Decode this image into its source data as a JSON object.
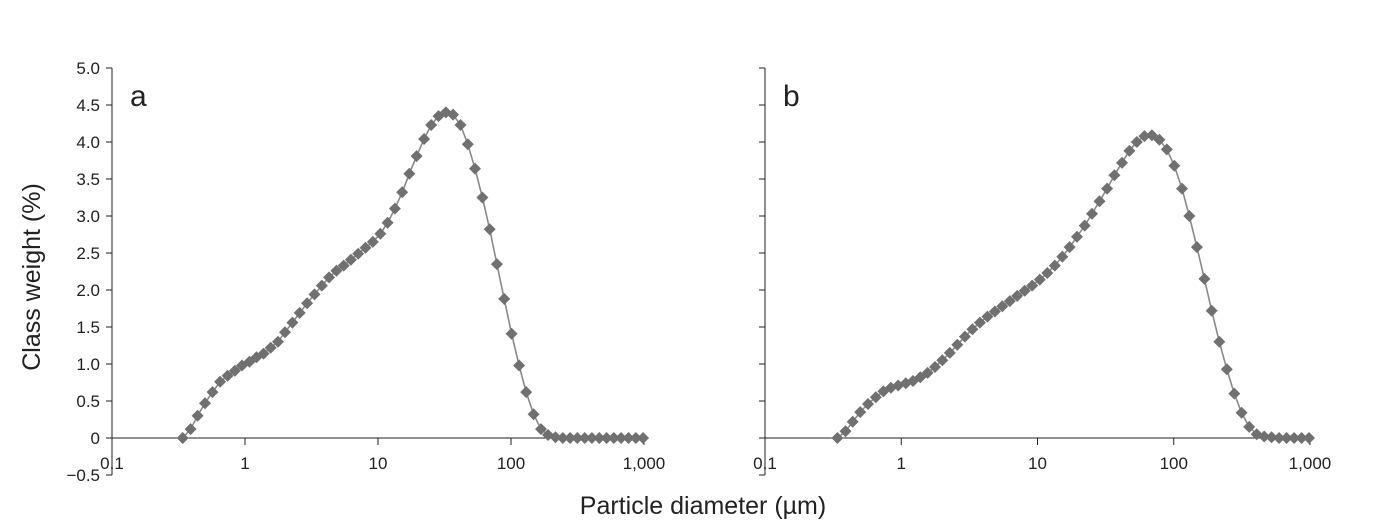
{
  "colors": {
    "marker": "#707070",
    "line": "#8a8a8a",
    "axis": "#222222",
    "background": "#ffffff"
  },
  "axes": {
    "ylabel": "Class weight (%)",
    "xlabel": "Particle diameter (µm)"
  },
  "chart_data": [
    {
      "type": "scatter",
      "panel_label": "a",
      "xlabel": "Particle diameter (µm)",
      "ylabel": "Class weight (%)",
      "x_scale": "log",
      "xlim": [
        0.1,
        1000
      ],
      "ylim": [
        -0.5,
        5.0
      ],
      "x_ticks": [
        0.1,
        1,
        10,
        100,
        1000
      ],
      "x_tick_labels": [
        "0.1",
        "1",
        "10",
        "100",
        "1,000"
      ],
      "y_ticks": [
        -0.5,
        0,
        0.5,
        1.0,
        1.5,
        2.0,
        2.5,
        3.0,
        3.5,
        4.0,
        4.5,
        5.0
      ],
      "y_tick_labels": [
        "−0.5",
        "0",
        "0.5",
        "1.0",
        "1.5",
        "2.0",
        "2.5",
        "3.0",
        "3.5",
        "4.0",
        "4.5",
        "5.0"
      ],
      "grid": false,
      "marker": "diamond",
      "connected": true,
      "series": [
        {
          "points": [
            [
              0.34,
              0.0
            ],
            [
              0.39,
              0.12
            ],
            [
              0.44,
              0.3
            ],
            [
              0.5,
              0.47
            ],
            [
              0.57,
              0.62
            ],
            [
              0.65,
              0.76
            ],
            [
              0.74,
              0.84
            ],
            [
              0.84,
              0.91
            ],
            [
              0.95,
              0.98
            ],
            [
              1.08,
              1.03
            ],
            [
              1.22,
              1.09
            ],
            [
              1.38,
              1.14
            ],
            [
              1.56,
              1.22
            ],
            [
              1.77,
              1.3
            ],
            [
              2.0,
              1.43
            ],
            [
              2.27,
              1.56
            ],
            [
              2.58,
              1.69
            ],
            [
              2.93,
              1.82
            ],
            [
              3.33,
              1.94
            ],
            [
              3.78,
              2.06
            ],
            [
              4.29,
              2.17
            ],
            [
              4.87,
              2.26
            ],
            [
              5.52,
              2.33
            ],
            [
              6.26,
              2.41
            ],
            [
              7.1,
              2.49
            ],
            [
              8.06,
              2.57
            ],
            [
              9.14,
              2.65
            ],
            [
              10.4,
              2.76
            ],
            [
              11.8,
              2.91
            ],
            [
              13.4,
              3.1
            ],
            [
              15.2,
              3.32
            ],
            [
              17.2,
              3.57
            ],
            [
              19.5,
              3.81
            ],
            [
              22.2,
              4.04
            ],
            [
              25.1,
              4.23
            ],
            [
              28.5,
              4.35
            ],
            [
              32.4,
              4.4
            ],
            [
              36.7,
              4.37
            ],
            [
              41.7,
              4.23
            ],
            [
              47.3,
              3.97
            ],
            [
              53.6,
              3.64
            ],
            [
              60.9,
              3.25
            ],
            [
              69.1,
              2.82
            ],
            [
              78.4,
              2.35
            ],
            [
              88.9,
              1.88
            ],
            [
              101,
              1.41
            ],
            [
              115,
              0.98
            ],
            [
              130,
              0.62
            ],
            [
              148,
              0.32
            ],
            [
              168,
              0.12
            ],
            [
              190,
              0.04
            ],
            [
              216,
              0.01
            ],
            [
              245,
              0.0
            ],
            [
              278,
              0.0
            ],
            [
              315,
              0.0
            ],
            [
              358,
              0.0
            ],
            [
              406,
              0.0
            ],
            [
              461,
              0.0
            ],
            [
              523,
              0.0
            ],
            [
              593,
              0.0
            ],
            [
              673,
              0.0
            ],
            [
              764,
              0.0
            ],
            [
              867,
              0.0
            ],
            [
              984,
              0.0
            ]
          ]
        }
      ]
    },
    {
      "type": "scatter",
      "panel_label": "b",
      "xlabel": "Particle diameter (µm)",
      "ylabel": "Class weight (%)",
      "x_scale": "log",
      "xlim": [
        0.1,
        1000
      ],
      "ylim": [
        -0.5,
        5.0
      ],
      "x_ticks": [
        0.1,
        1,
        10,
        100,
        1000
      ],
      "x_tick_labels": [
        "0.1",
        "1",
        "10",
        "100",
        "1,000"
      ],
      "y_ticks": [
        -0.5,
        0,
        0.5,
        1.0,
        1.5,
        2.0,
        2.5,
        3.0,
        3.5,
        4.0,
        4.5,
        5.0
      ],
      "y_tick_labels": [],
      "grid": false,
      "marker": "diamond",
      "connected": true,
      "series": [
        {
          "points": [
            [
              0.34,
              0.0
            ],
            [
              0.39,
              0.09
            ],
            [
              0.44,
              0.22
            ],
            [
              0.5,
              0.35
            ],
            [
              0.57,
              0.46
            ],
            [
              0.65,
              0.55
            ],
            [
              0.74,
              0.63
            ],
            [
              0.84,
              0.68
            ],
            [
              0.95,
              0.71
            ],
            [
              1.08,
              0.74
            ],
            [
              1.22,
              0.77
            ],
            [
              1.38,
              0.82
            ],
            [
              1.56,
              0.88
            ],
            [
              1.77,
              0.96
            ],
            [
              2.0,
              1.05
            ],
            [
              2.27,
              1.15
            ],
            [
              2.58,
              1.26
            ],
            [
              2.93,
              1.37
            ],
            [
              3.33,
              1.47
            ],
            [
              3.78,
              1.56
            ],
            [
              4.29,
              1.64
            ],
            [
              4.87,
              1.71
            ],
            [
              5.52,
              1.78
            ],
            [
              6.26,
              1.85
            ],
            [
              7.1,
              1.92
            ],
            [
              8.06,
              1.99
            ],
            [
              9.14,
              2.06
            ],
            [
              10.4,
              2.14
            ],
            [
              11.8,
              2.23
            ],
            [
              13.4,
              2.33
            ],
            [
              15.2,
              2.45
            ],
            [
              17.2,
              2.58
            ],
            [
              19.5,
              2.72
            ],
            [
              22.2,
              2.87
            ],
            [
              25.1,
              3.03
            ],
            [
              28.5,
              3.2
            ],
            [
              32.4,
              3.37
            ],
            [
              36.7,
              3.55
            ],
            [
              41.7,
              3.72
            ],
            [
              47.3,
              3.88
            ],
            [
              53.6,
              4.0
            ],
            [
              60.9,
              4.08
            ],
            [
              69.1,
              4.09
            ],
            [
              78.4,
              4.03
            ],
            [
              88.9,
              3.9
            ],
            [
              101,
              3.68
            ],
            [
              115,
              3.37
            ],
            [
              130,
              3.0
            ],
            [
              148,
              2.58
            ],
            [
              168,
              2.15
            ],
            [
              190,
              1.72
            ],
            [
              216,
              1.3
            ],
            [
              245,
              0.93
            ],
            [
              278,
              0.6
            ],
            [
              315,
              0.34
            ],
            [
              358,
              0.15
            ],
            [
              406,
              0.05
            ],
            [
              461,
              0.02
            ],
            [
              523,
              0.01
            ],
            [
              593,
              0.0
            ],
            [
              673,
              0.0
            ],
            [
              764,
              0.0
            ],
            [
              867,
              0.0
            ],
            [
              984,
              0.0
            ]
          ]
        }
      ]
    }
  ]
}
